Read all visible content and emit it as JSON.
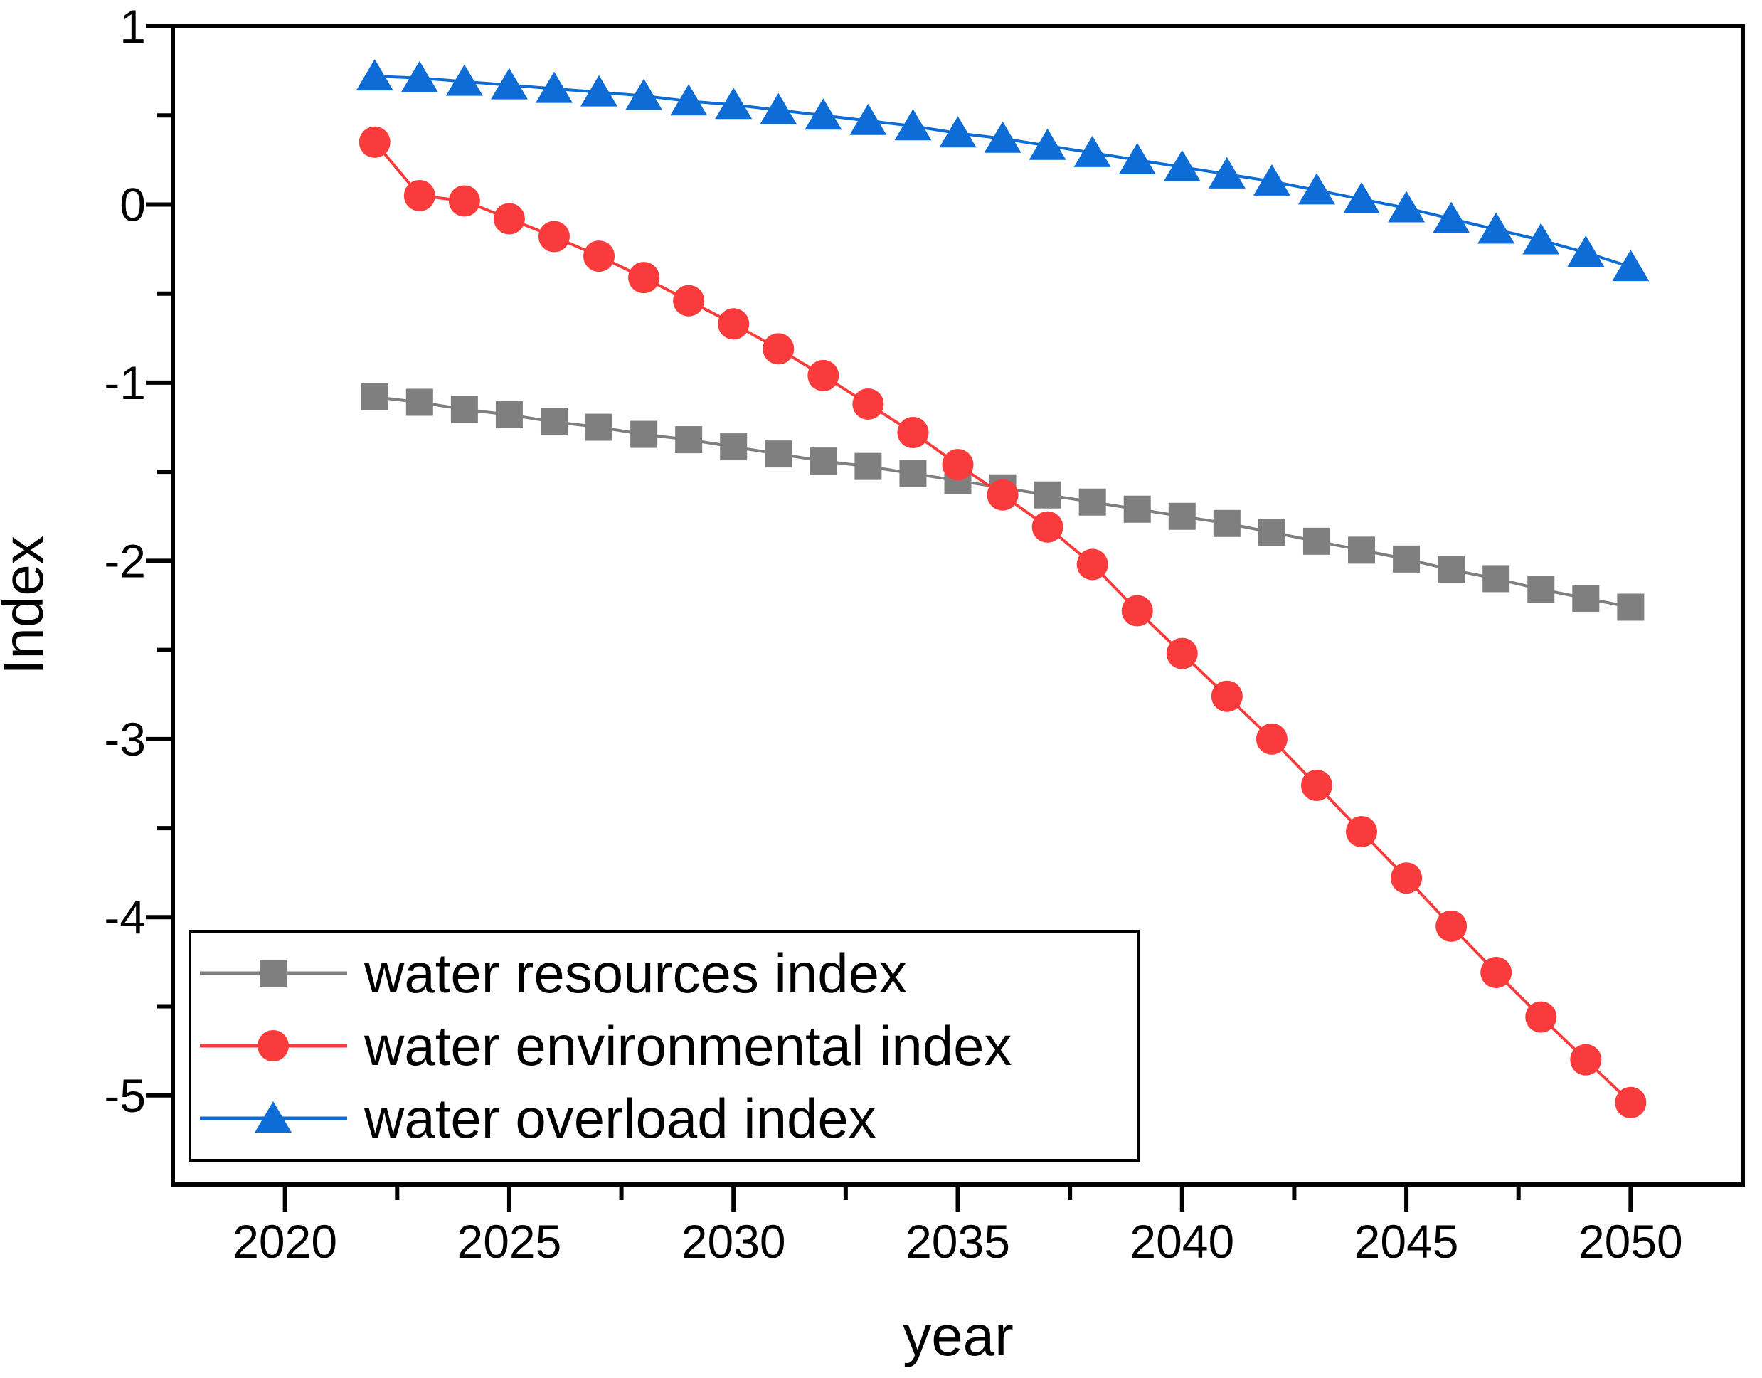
{
  "chart_data": {
    "type": "line",
    "title": "",
    "xlabel": "year",
    "ylabel": "Index",
    "xlim": [
      2017.5,
      2052.5
    ],
    "ylim": [
      -5.5,
      1
    ],
    "grid": false,
    "legend_position": "inside bottom-left",
    "x_major_ticks": [
      2020,
      2025,
      2030,
      2035,
      2040,
      2045,
      2050
    ],
    "x_minor_ticks": [
      2022.5,
      2027.5,
      2032.5,
      2037.5,
      2042.5,
      2047.5
    ],
    "y_major_ticks": [
      1,
      0,
      -1,
      -2,
      -3,
      -4,
      -5
    ],
    "y_minor_ticks": [
      0.5,
      -0.5,
      -1.5,
      -2.5,
      -3.5,
      -4.5
    ],
    "x": [
      2022,
      2023,
      2024,
      2025,
      2026,
      2027,
      2028,
      2029,
      2030,
      2031,
      2032,
      2033,
      2034,
      2035,
      2036,
      2037,
      2038,
      2039,
      2040,
      2041,
      2042,
      2043,
      2044,
      2045,
      2046,
      2047,
      2048,
      2049,
      2050
    ],
    "series": [
      {
        "name": "water resources index",
        "color": "#7f7f7f",
        "marker": "square",
        "values": [
          -1.08,
          -1.11,
          -1.15,
          -1.18,
          -1.22,
          -1.25,
          -1.29,
          -1.32,
          -1.36,
          -1.4,
          -1.44,
          -1.47,
          -1.51,
          -1.55,
          -1.59,
          -1.63,
          -1.67,
          -1.71,
          -1.75,
          -1.79,
          -1.84,
          -1.89,
          -1.94,
          -1.99,
          -2.05,
          -2.1,
          -2.16,
          -2.21,
          -2.26
        ]
      },
      {
        "name": "water environmental index",
        "color": "#f93b3b",
        "marker": "circle",
        "values": [
          0.35,
          0.05,
          0.02,
          -0.08,
          -0.18,
          -0.29,
          -0.41,
          -0.54,
          -0.67,
          -0.81,
          -0.96,
          -1.12,
          -1.28,
          -1.46,
          -1.63,
          -1.81,
          -2.02,
          -2.28,
          -2.52,
          -2.76,
          -3.0,
          -3.26,
          -3.52,
          -3.78,
          -4.05,
          -4.31,
          -4.56,
          -4.8,
          -5.04
        ]
      },
      {
        "name": "water overload index",
        "color": "#0d6cd5",
        "marker": "triangle",
        "values": [
          0.72,
          0.71,
          0.69,
          0.67,
          0.65,
          0.63,
          0.61,
          0.58,
          0.56,
          0.53,
          0.5,
          0.47,
          0.44,
          0.4,
          0.37,
          0.33,
          0.29,
          0.25,
          0.21,
          0.17,
          0.13,
          0.08,
          0.03,
          -0.02,
          -0.08,
          -0.14,
          -0.2,
          -0.27,
          -0.35
        ]
      }
    ],
    "axis_color": "#000000"
  }
}
